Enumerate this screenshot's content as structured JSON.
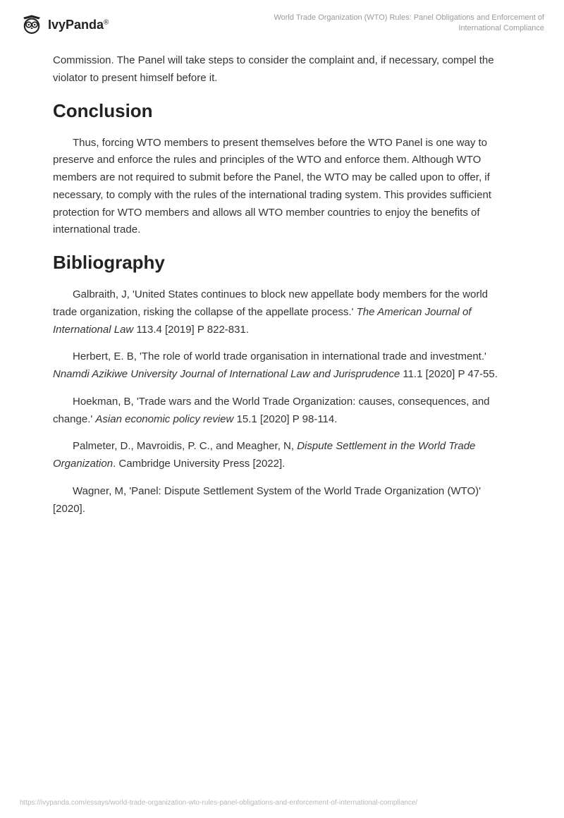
{
  "header": {
    "brand": "IvyPanda",
    "reg": "®",
    "title": "World Trade Organization (WTO) Rules: Panel Obligations and Enforcement of International Compliance"
  },
  "intro_para": "Commission. The Panel will take steps to consider the complaint and, if necessary, compel the violator to present himself before it.",
  "conclusion": {
    "heading": "Conclusion",
    "text": "Thus, forcing WTO members to present themselves before the WTO Panel is one way to preserve and enforce the rules and principles of the WTO and enforce them. Although WTO members are not required to submit before the Panel, the WTO may be called upon to offer, if necessary, to comply with the rules of the international trading system. This provides sufficient protection for WTO members and allows all WTO member countries to enjoy the benefits of international trade."
  },
  "bibliography": {
    "heading": "Bibliography",
    "entries": [
      {
        "pre": "Galbraith, J, 'United States continues to block new appellate body members for the world trade organization, risking the collapse of the appellate process.' ",
        "italic": "The American Journal of International Law",
        "post": " 113.4 [2019] P 822-831."
      },
      {
        "pre": "Herbert, E. B, 'The role of world trade organisation in international trade and investment.' ",
        "italic": "Nnamdi Azikiwe University Journal of International Law and Jurisprudence",
        "post": " 11.1 [2020] P 47-55."
      },
      {
        "pre": "Hoekman, B, 'Trade wars and the World Trade Organization: causes, consequences, and change.' ",
        "italic": "Asian economic policy review",
        "post": " 15.1 [2020] P 98-114."
      },
      {
        "pre": "Palmeter, D., Mavroidis, P. C., and Meagher, N, ",
        "italic": "Dispute Settlement in the World Trade Organization",
        "post": ". Cambridge University Press [2022]."
      },
      {
        "pre": "Wagner, M, 'Panel: Dispute Settlement System of the World Trade Organization (WTO)' [2020].",
        "italic": "",
        "post": ""
      }
    ]
  },
  "footer_url": "https://ivypanda.com/essays/world-trade-organization-wto-rules-panel-obligations-and-enforcement-of-international-compliance/"
}
